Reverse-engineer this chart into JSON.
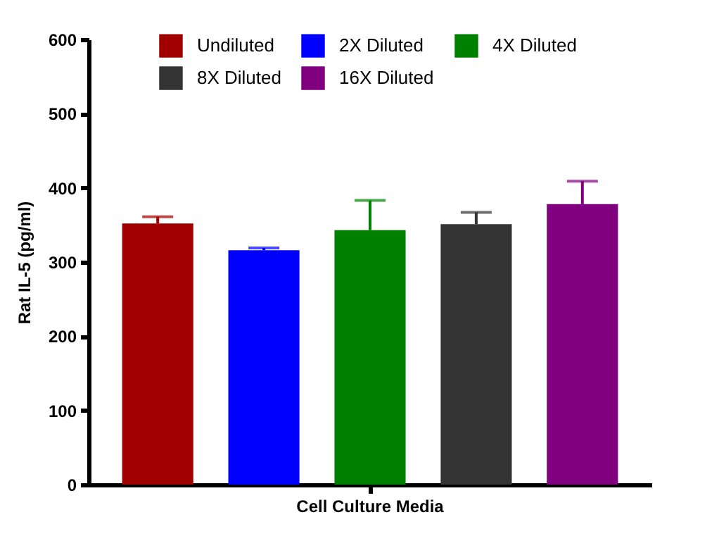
{
  "chart_data": {
    "type": "bar",
    "ylabel": "Rat IL-5 (pg/ml)",
    "categories": [
      "Cell Culture Media"
    ],
    "series": [
      {
        "name": "Undiluted",
        "color": "#a00000",
        "values": [
          352
        ],
        "errors": [
          [
            352,
            361
          ]
        ]
      },
      {
        "name": "2X Diluted",
        "color": "#0000ff",
        "values": [
          316
        ],
        "errors": [
          [
            316,
            319
          ]
        ]
      },
      {
        "name": "4X Diluted",
        "color": "#008000",
        "values": [
          343
        ],
        "errors": [
          [
            343,
            383
          ]
        ]
      },
      {
        "name": "8X Diluted",
        "color": "#333333",
        "values": [
          351
        ],
        "errors": [
          [
            351,
            367
          ]
        ]
      },
      {
        "name": "16X Diluted",
        "color": "#800080",
        "values": [
          378
        ],
        "errors": [
          [
            378,
            409
          ]
        ]
      }
    ],
    "ylim": [
      0,
      600
    ],
    "yticks": [
      0,
      100,
      200,
      300,
      400,
      500,
      600
    ],
    "legend": "top",
    "grid": false
  }
}
